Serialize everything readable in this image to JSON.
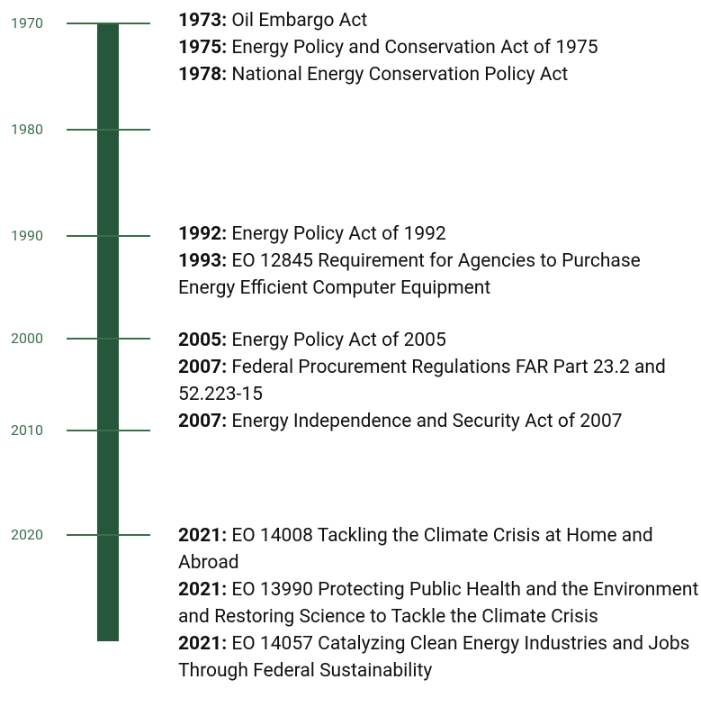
{
  "timeline": {
    "decades": [
      "1970",
      "1980",
      "1990",
      "2000",
      "2010",
      "2020"
    ],
    "groups": [
      {
        "events": [
          {
            "year": "1973:",
            "text": "Oil Embargo Act"
          },
          {
            "year": "1975:",
            "text": "Energy Policy and Conservation Act of 1975"
          },
          {
            "year": "1978:",
            "text": "National Energy Conservation Policy Act"
          }
        ]
      },
      {
        "events": [
          {
            "year": "1992:",
            "text": "Energy Policy Act of 1992"
          },
          {
            "year": "1993:",
            "text": "EO 12845 Requirement for Agencies to Purchase Energy Efficient Computer Equipment"
          }
        ]
      },
      {
        "events": [
          {
            "year": "2005:",
            "text": "Energy Policy Act of 2005"
          },
          {
            "year": "2007:",
            "text": "Federal Procurement Regulations FAR Part 23.2 and 52.223-15"
          },
          {
            "year": "2007:",
            "text": "Energy Independence and Security Act of 2007"
          }
        ]
      },
      {
        "events": [
          {
            "year": "2021:",
            "text": "EO 14008 Tackling the Climate Crisis at Home and Abroad"
          },
          {
            "year": "2021:",
            "text": "EO 13990 Protecting Public Health and the Environment and Restoring Science to Tackle the Climate Crisis"
          },
          {
            "year": "2021:",
            "text": "EO 14057 Catalyzing Clean Energy Industries and Jobs Through Federal Sustainability"
          }
        ]
      }
    ]
  }
}
